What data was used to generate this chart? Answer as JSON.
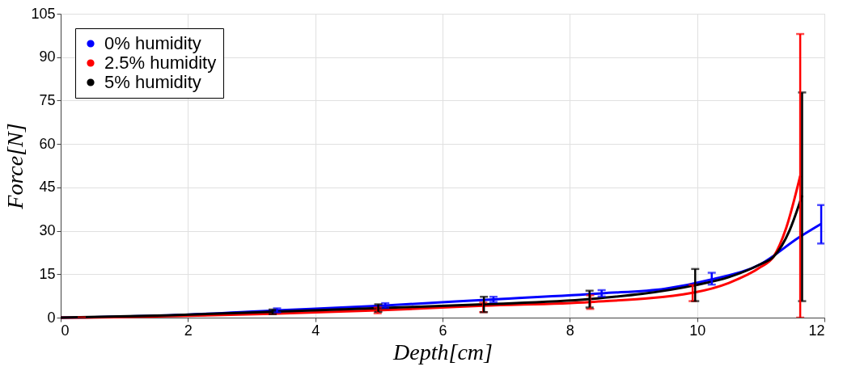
{
  "chart_data": {
    "type": "line",
    "xlabel": "Depth[cm]",
    "ylabel": "Force[N]",
    "xlim": [
      0,
      12
    ],
    "xticks": [
      {
        "value": 0,
        "label": "0"
      },
      {
        "value": 2,
        "label": "2"
      },
      {
        "value": 4,
        "label": "4"
      },
      {
        "value": 6,
        "label": "6"
      },
      {
        "value": 8,
        "label": "8"
      },
      {
        "value": 10,
        "label": "10"
      },
      {
        "value": 12,
        "label": "12"
      }
    ],
    "ylim": [
      0,
      105
    ],
    "yticks": [
      0,
      15,
      30,
      45,
      60,
      75,
      90,
      105
    ],
    "grid": true,
    "legend": "top left",
    "marker": "none",
    "line_style": "solid",
    "series": [
      {
        "name": "0% humidity",
        "color": "#0000ff",
        "x": [
          0,
          1.7,
          3.4,
          5.1,
          6.8,
          8.5,
          9.5,
          10.23,
          11,
          11.6,
          11.95
        ],
        "values": [
          0,
          0.8,
          2.5,
          4.2,
          6.3,
          8.4,
          10,
          13.2,
          18.5,
          27.7,
          32.4
        ],
        "errors": [
          null,
          null,
          [
            1.8,
            3.2
          ],
          [
            3.4,
            5.0
          ],
          [
            5.4,
            7.2
          ],
          [
            7.3,
            9.5
          ],
          null,
          [
            11.4,
            15.5
          ],
          null,
          null,
          [
            25.6,
            38.9
          ]
        ]
      },
      {
        "name": "2.5% humidity",
        "color": "#ff0000",
        "x": [
          0,
          0.33,
          1.66,
          3.32,
          4.98,
          6.64,
          8.32,
          9.93,
          10.5,
          11,
          11.2,
          11.4,
          11.62
        ],
        "values": [
          0,
          0,
          0.5,
          1.3,
          2.5,
          4.1,
          5.4,
          8.6,
          12,
          17.5,
          21,
          31,
          49
        ],
        "errors": [
          null,
          [
            0,
            0
          ],
          null,
          null,
          [
            1.5,
            3.5
          ],
          [
            1.9,
            5.2
          ],
          [
            3.0,
            7.7
          ],
          [
            5.7,
            11.3
          ],
          null,
          null,
          null,
          null,
          [
            0,
            98
          ]
        ]
      },
      {
        "name": "5% humidity",
        "color": "#000000",
        "x": [
          0,
          1.66,
          3.33,
          4.99,
          6.65,
          8.31,
          9.97,
          10.5,
          11,
          11.2,
          11.45,
          11.65
        ],
        "values": [
          0,
          0.8,
          2.0,
          3.3,
          4.6,
          6.4,
          11.2,
          14,
          18.5,
          21,
          30,
          42.2
        ],
        "errors": [
          null,
          null,
          [
            1.2,
            2.8
          ],
          [
            2.0,
            4.6
          ],
          [
            1.9,
            7.2
          ],
          [
            3.5,
            9.3
          ],
          [
            5.7,
            16.8
          ],
          null,
          null,
          null,
          null,
          [
            5.7,
            77.8
          ]
        ]
      }
    ]
  }
}
